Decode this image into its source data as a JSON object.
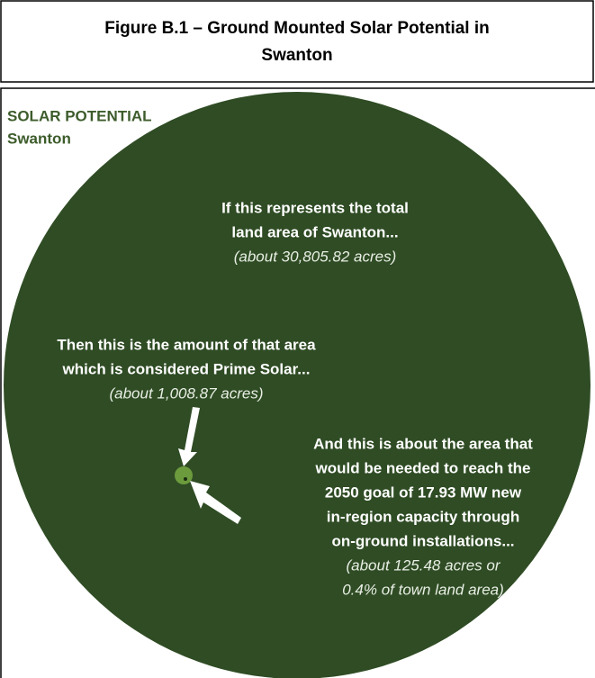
{
  "figure": {
    "title_lines": [
      "Figure B.1 – Ground Mounted Solar Potential in",
      "Swanton"
    ]
  },
  "header": {
    "title": "SOLAR POTENTIAL",
    "subtitle": "Swanton"
  },
  "blocks": [
    {
      "lines": [
        "If this represents the total",
        "land area of Swanton..."
      ],
      "note_lines": [
        "(about 30,805.82 acres)"
      ]
    },
    {
      "lines": [
        "Then this is the amount of that area",
        "which is considered Prime Solar..."
      ],
      "note_lines": [
        "(about 1,008.87 acres)"
      ]
    },
    {
      "lines": [
        "And this is about the area that",
        "would be needed to reach the",
        "2050 goal of 17.93 MW new",
        "in-region capacity through",
        "on-ground installations..."
      ],
      "note_lines": [
        "(about 125.48 acres or",
        "0.4% of town land area)"
      ]
    }
  ]
}
